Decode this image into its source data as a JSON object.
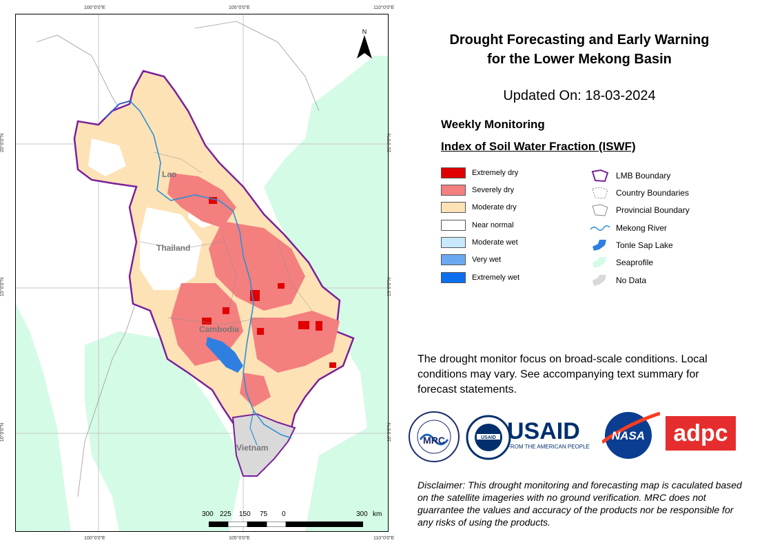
{
  "map": {
    "top_ticks": [
      "100°0'0\"E",
      "105°0'0\"E",
      "110°0'0\"E"
    ],
    "bottom_ticks": [
      "100°0'0\"E",
      "105°0'0\"E",
      "110°0'0\"E"
    ],
    "left_ticks": [
      "20°0'0\"N",
      "15°0'0\"N",
      "10°0'0\"N"
    ],
    "right_ticks": [
      "20°0'0\"N",
      "15°0'0\"N",
      "10°0'0\"N"
    ],
    "north": "N",
    "countries": [
      "Lao",
      "Thailand",
      "Cambodia",
      "Vietnam"
    ],
    "scale": {
      "labels": [
        "300",
        "225",
        "150",
        "75",
        "0",
        "300"
      ],
      "unit": "km"
    }
  },
  "title_line1": "Drought Forecasting and Early Warning",
  "title_line2": "for the Lower Mekong Basin",
  "updated": "Updated On: 18-03-2024",
  "section": "Weekly Monitoring",
  "index_name": "Index of Soil Water Fraction (ISWF)",
  "legend_classes": [
    {
      "label": "Extremely dry",
      "color": "#e00000"
    },
    {
      "label": "Severely dry",
      "color": "#f47f7f"
    },
    {
      "label": "Moderate dry",
      "color": "#fde2b6"
    },
    {
      "label": "Near normal",
      "color": "#ffffff"
    },
    {
      "label": "Moderate wet",
      "color": "#c8e8fb"
    },
    {
      "label": "Very wet",
      "color": "#6aa9f2"
    },
    {
      "label": "Extremely wet",
      "color": "#0b6ff0"
    }
  ],
  "legend_layers": [
    {
      "label": "LMB Boundary",
      "icon": "lmb-boundary-icon"
    },
    {
      "label": "Country Boundaries",
      "icon": "country-boundary-icon"
    },
    {
      "label": "Provincial Boundary",
      "icon": "provincial-boundary-icon"
    },
    {
      "label": "Mekong River",
      "icon": "river-icon"
    },
    {
      "label": "Tonle Sap Lake",
      "icon": "lake-icon"
    },
    {
      "label": "Seaprofile",
      "icon": "sea-icon"
    },
    {
      "label": "No Data",
      "icon": "no-data-icon"
    }
  ],
  "note": "The drought monitor focus on broad-scale conditions. Local conditions may vary. See accompanying text summary for forecast statements.",
  "logos": {
    "mrc": "MRC",
    "mrc_ring": "MEKONG RIVER COMMISSION FOR SUSTAINABLE DEVELOPMENT",
    "usaid_seal": "USAID",
    "usaid_ring": "UNITED STATES AGENCY FOR INTERNATIONAL DEVELOPMENT",
    "usaid": "USAID",
    "usaid_tag": "FROM THE AMERICAN PEOPLE",
    "nasa": "NASA",
    "adpc": "adpc"
  },
  "disclaimer": "Disclaimer: This drought monitoring and forecasting map is caculated based on the satellite imageries with no ground verification. MRC does not guarrantee the values and accuracy of the products nor be responsible for any risks of using the products.",
  "colors": {
    "sea": "#d4fbe6",
    "lmb_boundary": "#7a1f9a",
    "river": "#2a8fd6",
    "lake": "#2f7fe0",
    "no_data": "#d9d9d9",
    "usaid_blue": "#002f6c",
    "usaid_red": "#c2113a",
    "adpc_red": "#e52d2d",
    "nasa_blue": "#0b3d91",
    "nasa_red": "#fc3d21"
  }
}
